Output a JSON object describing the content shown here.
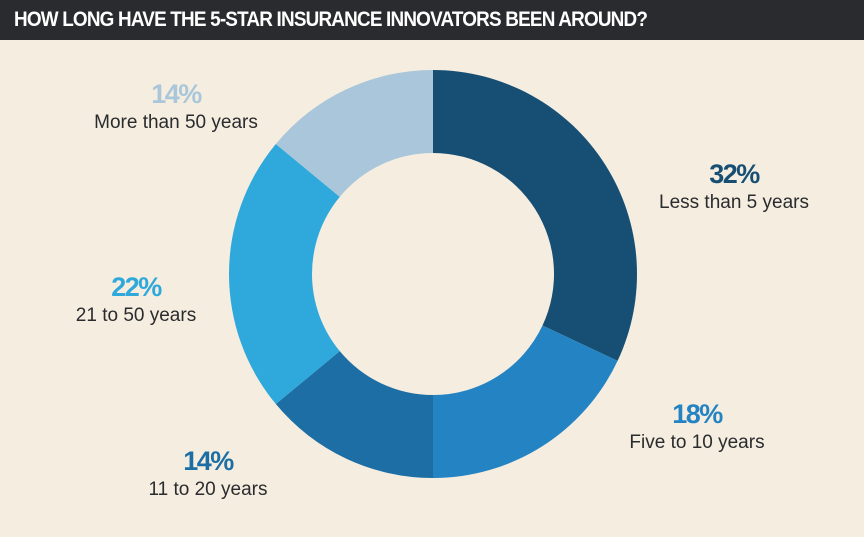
{
  "header": {
    "title": "HOW LONG HAVE THE 5-STAR INSURANCE INNOVATORS BEEN AROUND?"
  },
  "chart_data": {
    "type": "pie",
    "donut": true,
    "title": "HOW LONG HAVE THE 5-STAR INSURANCE INNOVATORS BEEN AROUND?",
    "categories": [
      "Less than 5 years",
      "Five to 10 years",
      "11 to 20 years",
      "21 to 50 years",
      "More than 50 years"
    ],
    "values": [
      32,
      18,
      14,
      22,
      14
    ],
    "value_labels": [
      "32%",
      "18%",
      "14%",
      "22%",
      "14%"
    ],
    "colors": [
      "#174f74",
      "#2483c3",
      "#1d6ea5",
      "#2fa8dc",
      "#a9c6da"
    ],
    "legend": "none"
  }
}
